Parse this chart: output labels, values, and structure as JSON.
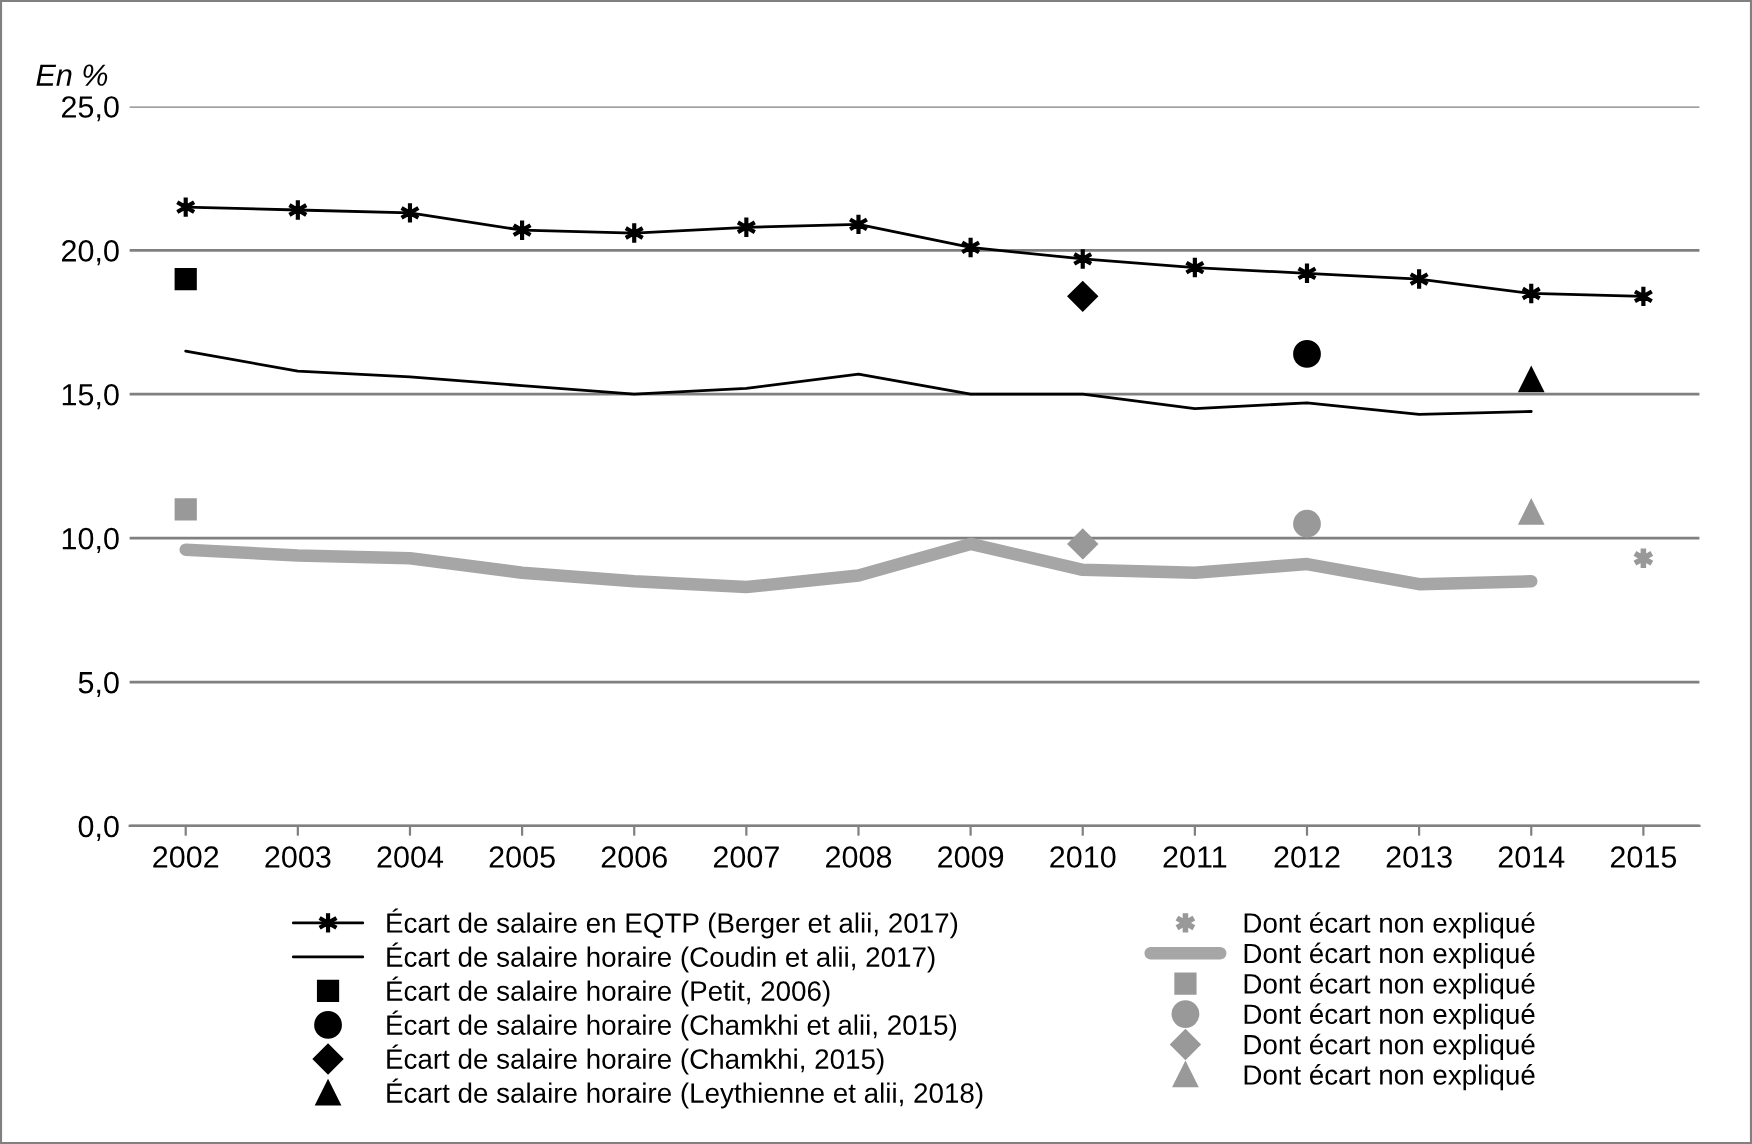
{
  "chart_data": {
    "type": "line",
    "ylabel": "En %",
    "categories": [
      "2002",
      "2003",
      "2004",
      "2005",
      "2006",
      "2007",
      "2008",
      "2009",
      "2010",
      "2011",
      "2012",
      "2013",
      "2014",
      "2015"
    ],
    "ylim": [
      0,
      25
    ],
    "yticks": [
      {
        "value": 0,
        "label": "0,0"
      },
      {
        "value": 5,
        "label": "5,0"
      },
      {
        "value": 10,
        "label": "10,0"
      },
      {
        "value": 15,
        "label": "15,0"
      },
      {
        "value": 20,
        "label": "20,0"
      },
      {
        "value": 25,
        "label": "25,0"
      }
    ],
    "grid": "y",
    "legend": "bottom",
    "series": [
      {
        "name": "Écart de salaire en EQTP (Berger et alii, 2017)",
        "marker": "cross",
        "color": "#000000",
        "values": [
          21.5,
          21.4,
          21.3,
          20.7,
          20.6,
          20.8,
          20.9,
          20.1,
          19.7,
          19.4,
          19.2,
          19.0,
          18.5,
          18.4
        ]
      },
      {
        "name": "Écart de salaire horaire (Coudin et alii, 2017)",
        "color": "#000000",
        "values": [
          16.5,
          15.8,
          15.6,
          15.3,
          15.0,
          15.2,
          15.7,
          15.0,
          15.0,
          14.5,
          14.7,
          14.3,
          14.4,
          null
        ]
      },
      {
        "name": "Écart de salaire horaire (Petit, 2006)",
        "type": "scatter",
        "marker": "square",
        "color": "#000000",
        "values": [
          19.0,
          null,
          null,
          null,
          null,
          null,
          null,
          null,
          null,
          null,
          null,
          null,
          null,
          null
        ]
      },
      {
        "name": "Écart de salaire horaire (Chamkhi et alii, 2015)",
        "type": "scatter",
        "marker": "circle",
        "color": "#000000",
        "values": [
          null,
          null,
          null,
          null,
          null,
          null,
          null,
          null,
          null,
          null,
          16.4,
          null,
          null,
          null
        ]
      },
      {
        "name": "Écart de salaire horaire (Chamkhi, 2015)",
        "type": "scatter",
        "marker": "diamond",
        "color": "#000000",
        "values": [
          null,
          null,
          null,
          null,
          null,
          null,
          null,
          null,
          18.4,
          null,
          null,
          null,
          null,
          null
        ]
      },
      {
        "name": "Écart de salaire horaire (Leythienne et alii, 2018)",
        "type": "scatter",
        "marker": "triangle",
        "color": "#000000",
        "values": [
          null,
          null,
          null,
          null,
          null,
          null,
          null,
          null,
          null,
          null,
          null,
          null,
          15.5,
          null
        ]
      },
      {
        "name": "Dont écart non expliqué",
        "type": "scatter",
        "marker": "cross",
        "color": "#999999",
        "values": [
          null,
          null,
          null,
          null,
          null,
          null,
          null,
          null,
          null,
          null,
          null,
          null,
          null,
          9.3
        ]
      },
      {
        "name": "Dont écart non expliqué",
        "color": "#a6a6a6",
        "values": [
          9.6,
          9.4,
          9.3,
          8.8,
          8.5,
          8.3,
          8.7,
          9.8,
          8.9,
          8.8,
          9.1,
          8.4,
          8.5,
          null
        ]
      },
      {
        "name": "Dont écart non expliqué",
        "type": "scatter",
        "marker": "square",
        "color": "#999999",
        "values": [
          11.0,
          null,
          null,
          null,
          null,
          null,
          null,
          null,
          null,
          null,
          null,
          null,
          null,
          null
        ]
      },
      {
        "name": "Dont écart non expliqué",
        "type": "scatter",
        "marker": "circle",
        "color": "#999999",
        "values": [
          null,
          null,
          null,
          null,
          null,
          null,
          null,
          null,
          null,
          null,
          10.5,
          null,
          null,
          null
        ]
      },
      {
        "name": "Dont écart non expliqué",
        "type": "scatter",
        "marker": "diamond",
        "color": "#999999",
        "values": [
          null,
          null,
          null,
          null,
          null,
          null,
          null,
          null,
          9.8,
          null,
          null,
          null,
          null,
          null
        ]
      },
      {
        "name": "Dont écart non expliqué",
        "type": "scatter",
        "marker": "triangle",
        "color": "#999999",
        "values": [
          null,
          null,
          null,
          null,
          null,
          null,
          null,
          null,
          null,
          null,
          null,
          null,
          10.9,
          null
        ]
      }
    ]
  }
}
